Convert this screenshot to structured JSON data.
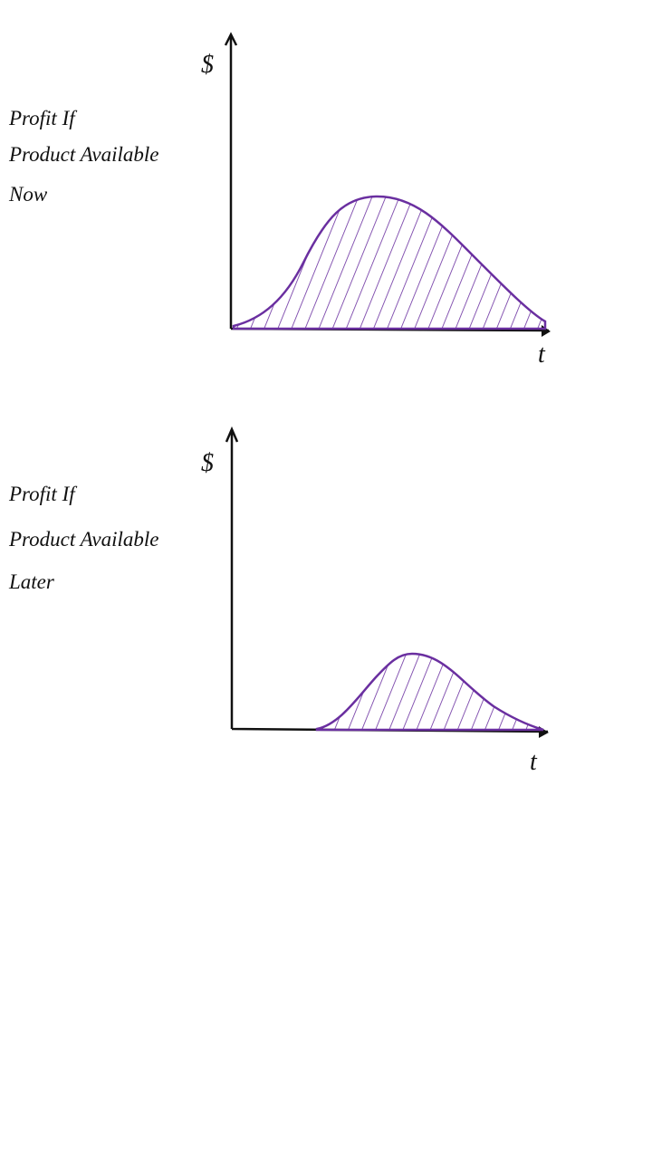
{
  "panels": [
    {
      "label": [
        "Profit If",
        "Product Available",
        "Now"
      ],
      "y_axis": "$",
      "x_axis": "t"
    },
    {
      "label": [
        "Profit If",
        "Product Available",
        "Later"
      ],
      "y_axis": "$",
      "x_axis": "t"
    }
  ]
}
